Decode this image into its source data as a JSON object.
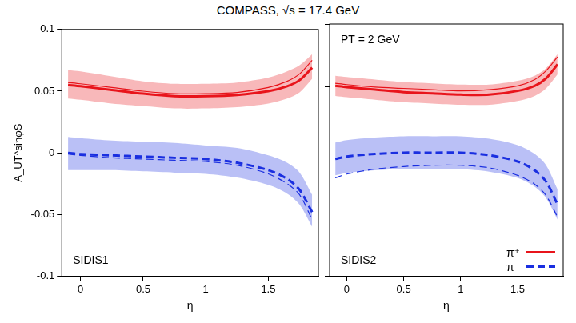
{
  "title": "COMPASS, √s = 17.4 GeV",
  "chart_data": [
    {
      "type": "line",
      "label": "SIDIS1",
      "x_label": "η",
      "y_label": "A_UT^sinφS",
      "x": [
        -0.1,
        0,
        0.25,
        0.5,
        0.75,
        1,
        1.25,
        1.5,
        1.65,
        1.75,
        1.85
      ],
      "xlim": [
        -0.15,
        1.9
      ],
      "xticks": [
        0,
        0.5,
        1,
        1.5
      ],
      "ylim": [
        -0.1,
        0.1
      ],
      "yticks": [
        -0.1,
        -0.05,
        0,
        0.05,
        0.1
      ],
      "grid": false,
      "series": [
        {
          "name": "π⁺",
          "color": "#e8141b",
          "line_style": "solid",
          "values": [
            0.055,
            0.054,
            0.051,
            0.048,
            0.046,
            0.046,
            0.047,
            0.05,
            0.054,
            0.059,
            0.069
          ],
          "alt_values": [
            0.057,
            0.056,
            0.053,
            0.05,
            0.048,
            0.048,
            0.049,
            0.053,
            0.058,
            0.064,
            0.075
          ],
          "band_high": [
            0.067,
            0.066,
            0.062,
            0.058,
            0.056,
            0.056,
            0.057,
            0.061,
            0.066,
            0.071,
            0.08
          ],
          "band_low": [
            0.044,
            0.043,
            0.04,
            0.038,
            0.036,
            0.036,
            0.037,
            0.04,
            0.044,
            0.049,
            0.06
          ]
        },
        {
          "name": "π⁻",
          "color": "#1a2fe0",
          "line_style": "dashed",
          "values": [
            0.0,
            -0.001,
            -0.002,
            -0.003,
            -0.004,
            -0.005,
            -0.008,
            -0.014,
            -0.021,
            -0.03,
            -0.048
          ],
          "alt_values": [
            -0.001,
            -0.002,
            -0.004,
            -0.005,
            -0.006,
            -0.007,
            -0.01,
            -0.017,
            -0.025,
            -0.034,
            -0.054
          ],
          "band_high": [
            0.013,
            0.012,
            0.01,
            0.009,
            0.008,
            0.006,
            0.004,
            -0.002,
            -0.008,
            -0.016,
            -0.034
          ],
          "band_low": [
            -0.014,
            -0.014,
            -0.014,
            -0.015,
            -0.016,
            -0.017,
            -0.02,
            -0.026,
            -0.033,
            -0.042,
            -0.06
          ]
        }
      ]
    },
    {
      "type": "line",
      "label": "SIDIS2",
      "note": "PT = 2 GeV",
      "x_label": "η",
      "x": [
        -0.1,
        0,
        0.25,
        0.5,
        0.75,
        1,
        1.25,
        1.5,
        1.65,
        1.75,
        1.85
      ],
      "xlim": [
        -0.15,
        1.9
      ],
      "xticks": [
        0,
        0.5,
        1,
        1.5
      ],
      "ylim": [
        -0.1,
        0.1
      ],
      "yticks": [
        -0.1,
        -0.05,
        0,
        0.05,
        0.1
      ],
      "grid": false,
      "tick_labels": "x",
      "legend": "bottom right",
      "series": [
        {
          "name": "π⁺",
          "color": "#e8141b",
          "line_style": "solid",
          "values": [
            0.051,
            0.05,
            0.048,
            0.046,
            0.045,
            0.044,
            0.044,
            0.047,
            0.051,
            0.057,
            0.068
          ],
          "alt_values": [
            0.053,
            0.052,
            0.05,
            0.049,
            0.048,
            0.047,
            0.048,
            0.051,
            0.056,
            0.063,
            0.074
          ],
          "band_high": [
            0.059,
            0.058,
            0.056,
            0.054,
            0.053,
            0.052,
            0.052,
            0.055,
            0.059,
            0.065,
            0.076
          ],
          "band_low": [
            0.043,
            0.042,
            0.04,
            0.038,
            0.037,
            0.036,
            0.036,
            0.039,
            0.043,
            0.049,
            0.06
          ]
        },
        {
          "name": "π⁻",
          "color": "#1a2fe0",
          "line_style": "dashed",
          "values": [
            -0.007,
            -0.005,
            -0.003,
            -0.002,
            -0.002,
            -0.002,
            -0.004,
            -0.009,
            -0.016,
            -0.025,
            -0.043
          ],
          "alt_values": [
            -0.022,
            -0.019,
            -0.015,
            -0.013,
            -0.012,
            -0.012,
            -0.014,
            -0.02,
            -0.027,
            -0.036,
            -0.053
          ],
          "band_high": [
            0.006,
            0.008,
            0.01,
            0.011,
            0.011,
            0.011,
            0.009,
            0.004,
            -0.003,
            -0.012,
            -0.031
          ],
          "band_low": [
            -0.02,
            -0.018,
            -0.016,
            -0.015,
            -0.015,
            -0.015,
            -0.017,
            -0.022,
            -0.029,
            -0.038,
            -0.055
          ]
        }
      ]
    }
  ]
}
